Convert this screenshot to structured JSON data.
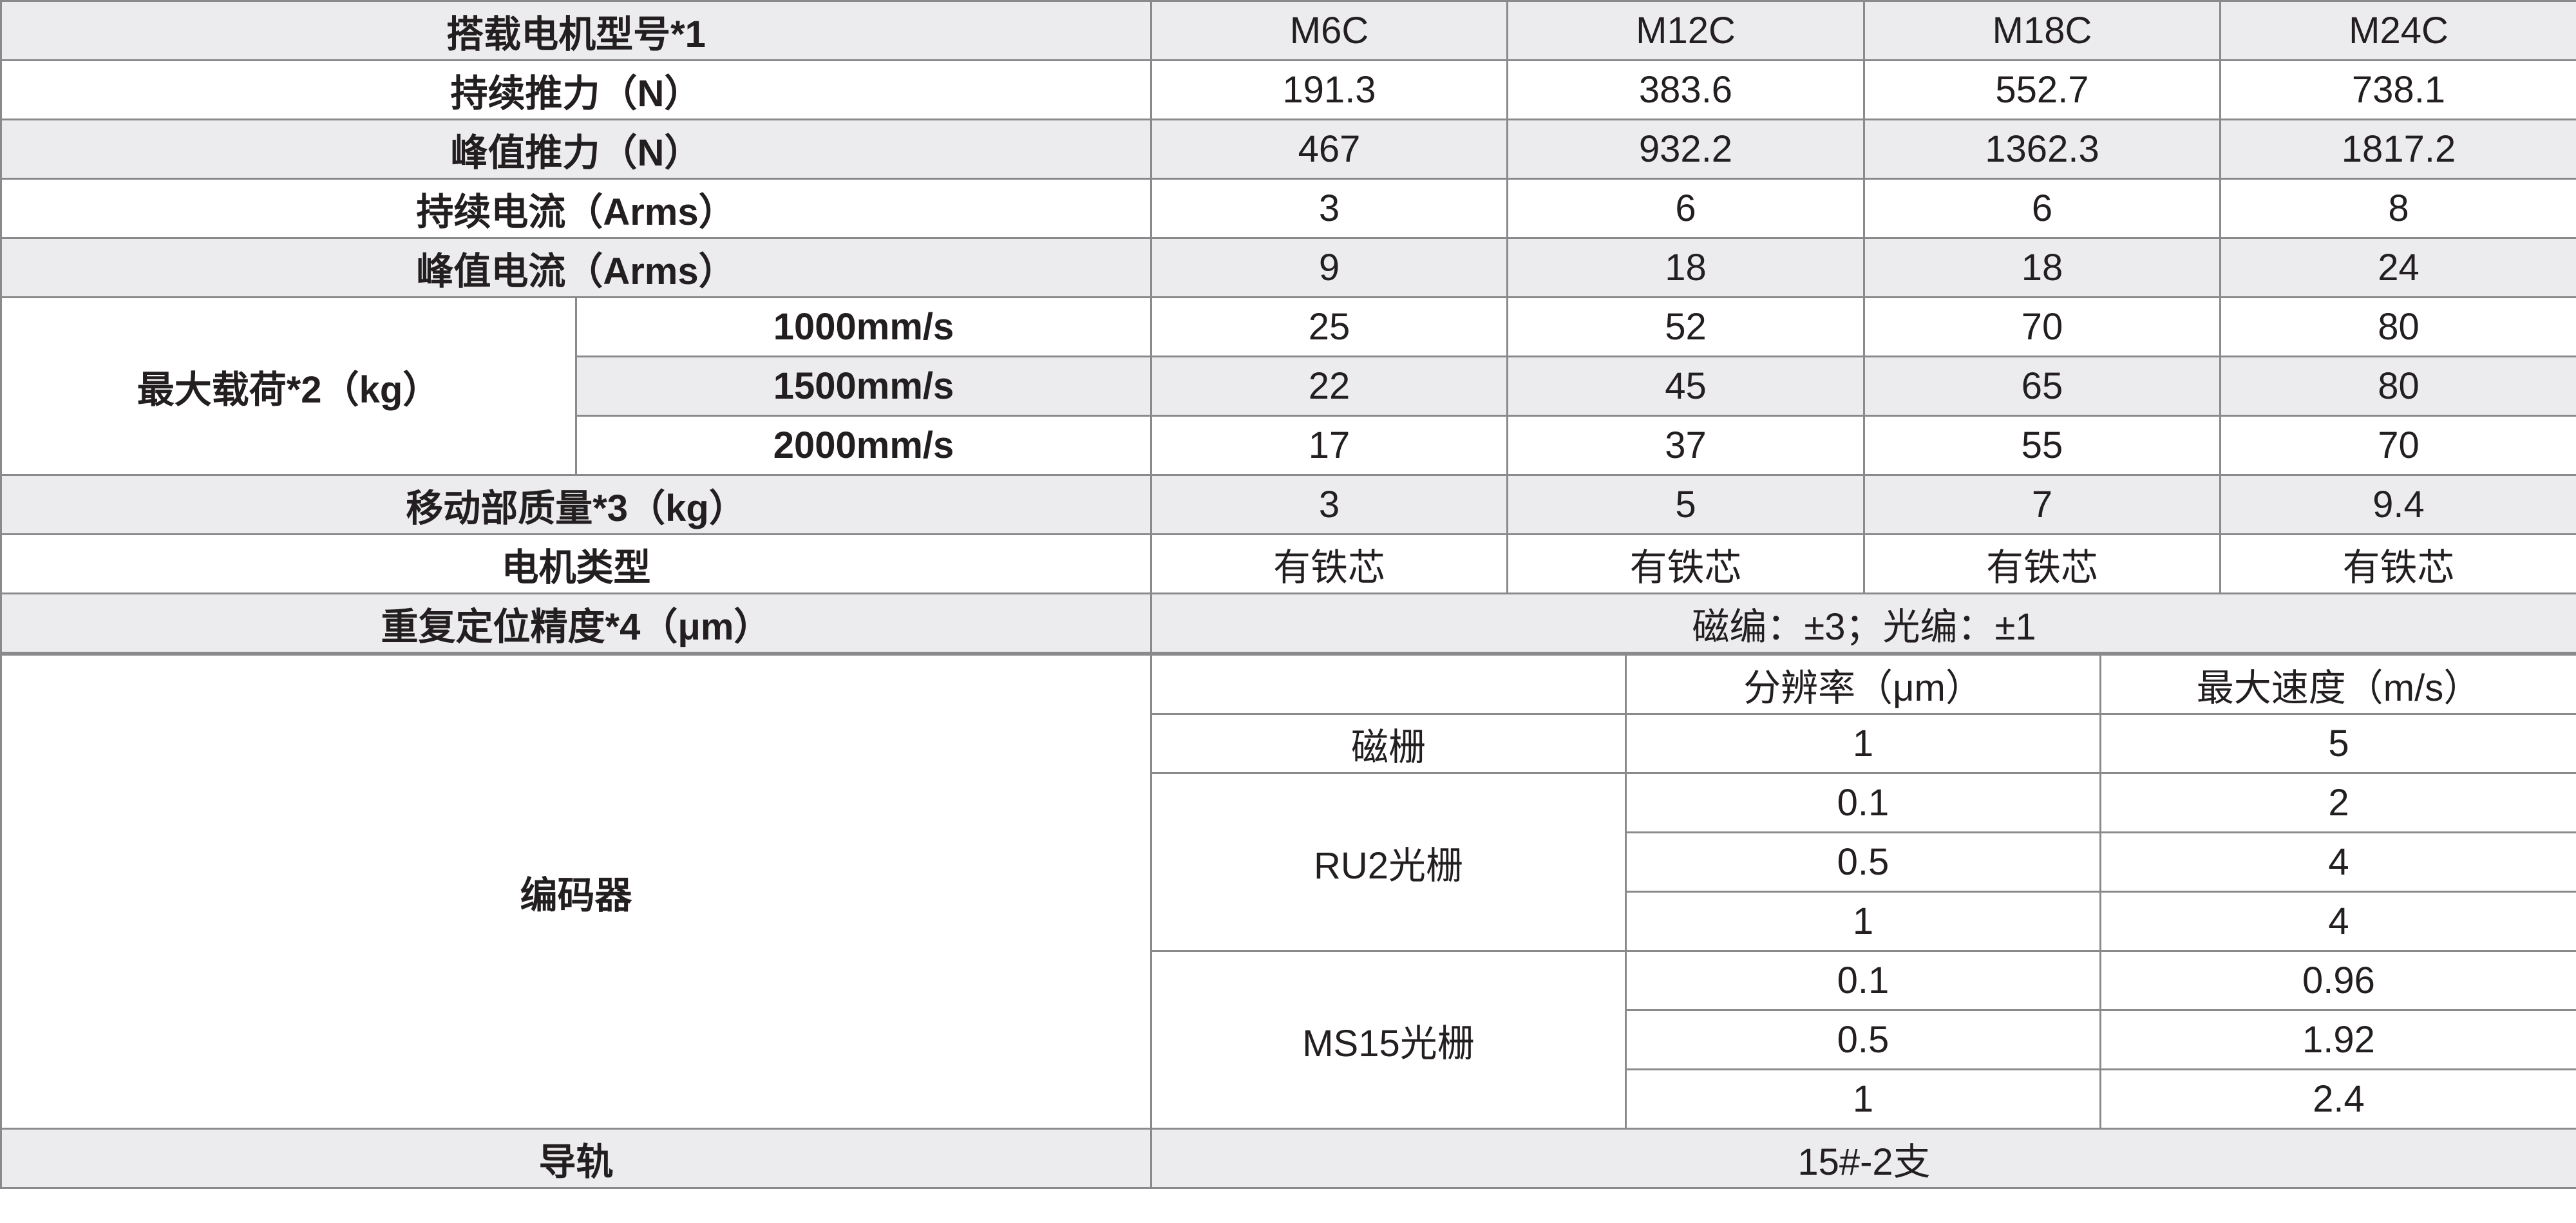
{
  "header": {
    "label": "搭载电机型号*1",
    "models": [
      "M6C",
      "M12C",
      "M18C",
      "M24C"
    ]
  },
  "rows": [
    {
      "label": "持续推力（N）",
      "values": [
        "191.3",
        "383.6",
        "552.7",
        "738.1"
      ]
    },
    {
      "label": "峰值推力（N）",
      "values": [
        "467",
        "932.2",
        "1362.3",
        "1817.2"
      ]
    },
    {
      "label": "持续电流（Arms）",
      "values": [
        "3",
        "6",
        "6",
        "8"
      ]
    },
    {
      "label": "峰值电流（Arms）",
      "values": [
        "9",
        "18",
        "18",
        "24"
      ]
    }
  ],
  "max_load": {
    "label": "最大载荷*2（kg）",
    "rows": [
      {
        "speed": "1000mm/s",
        "values": [
          "25",
          "52",
          "70",
          "80"
        ]
      },
      {
        "speed": "1500mm/s",
        "values": [
          "22",
          "45",
          "65",
          "80"
        ]
      },
      {
        "speed": "2000mm/s",
        "values": [
          "17",
          "37",
          "55",
          "70"
        ]
      }
    ]
  },
  "rows2": [
    {
      "label": "移动部质量*3（kg）",
      "values": [
        "3",
        "5",
        "7",
        "9.4"
      ]
    },
    {
      "label": "电机类型",
      "values": [
        "有铁芯",
        "有铁芯",
        "有铁芯",
        "有铁芯"
      ]
    }
  ],
  "repeatability": {
    "label": "重复定位精度*4（μm）",
    "value": "磁编：±3；光编：±1"
  },
  "encoder": {
    "label": "编码器",
    "headers": [
      "分辨率（μm）",
      "最大速度（m/s）"
    ],
    "groups": [
      {
        "name": "磁栅",
        "rows": [
          [
            "1",
            "5"
          ]
        ]
      },
      {
        "name": "RU2光栅",
        "rows": [
          [
            "0.1",
            "2"
          ],
          [
            "0.5",
            "4"
          ],
          [
            "1",
            "4"
          ]
        ]
      },
      {
        "name": "MS15光栅",
        "rows": [
          [
            "0.1",
            "0.96"
          ],
          [
            "0.5",
            "1.92"
          ],
          [
            "1",
            "2.4"
          ]
        ]
      }
    ]
  },
  "rail": {
    "label": "导轨",
    "value": "15#-2支"
  },
  "colors": {
    "stripe": "#ececee",
    "border": "#8a8a8c",
    "text": "#231f20"
  }
}
